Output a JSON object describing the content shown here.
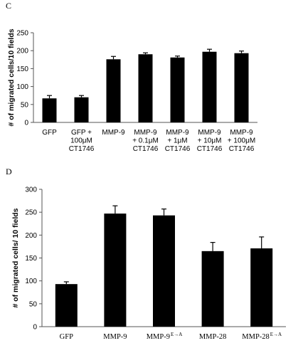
{
  "panels": [
    {
      "letter": "C",
      "chart_data": {
        "type": "bar",
        "title": "",
        "xlabel": "",
        "ylabel": "# of migrated cells/10 fields",
        "ylim": [
          0,
          250
        ],
        "yticks": [
          0,
          50,
          100,
          150,
          200,
          250
        ],
        "grid": false,
        "categories": [
          [
            "GFP"
          ],
          [
            "GFP +",
            "100μM",
            "CT1746"
          ],
          [
            "MMP-9"
          ],
          [
            "MMP-9",
            "+ 0.1μM",
            "CT1746"
          ],
          [
            "MMP-9",
            "+ 1μM",
            "CT1746"
          ],
          [
            "MMP-9",
            "+ 10μM",
            "CT1746"
          ],
          [
            "MMP-9",
            "+ 100μM",
            "CT1746"
          ]
        ],
        "values": [
          67,
          70,
          176,
          190,
          181,
          197,
          193
        ],
        "errors": [
          8,
          5,
          8,
          4,
          4,
          7,
          6
        ],
        "bar_color": "#000000"
      }
    },
    {
      "letter": "D",
      "chart_data": {
        "type": "bar",
        "title": "",
        "xlabel": "",
        "ylabel": "# of migrated cells/ 10 fields",
        "ylim": [
          0,
          300
        ],
        "yticks": [
          0,
          50,
          100,
          150,
          200,
          250,
          300
        ],
        "grid": false,
        "categories": [
          [
            "GFP"
          ],
          [
            "MMP-9"
          ],
          [
            "MMP-9",
            "E→A"
          ],
          [
            "MMP-28"
          ],
          [
            "MMP-28",
            "E→A"
          ]
        ],
        "values": [
          93,
          247,
          243,
          165,
          171
        ],
        "errors": [
          5,
          17,
          14,
          19,
          25
        ],
        "bar_color": "#000000"
      }
    }
  ]
}
